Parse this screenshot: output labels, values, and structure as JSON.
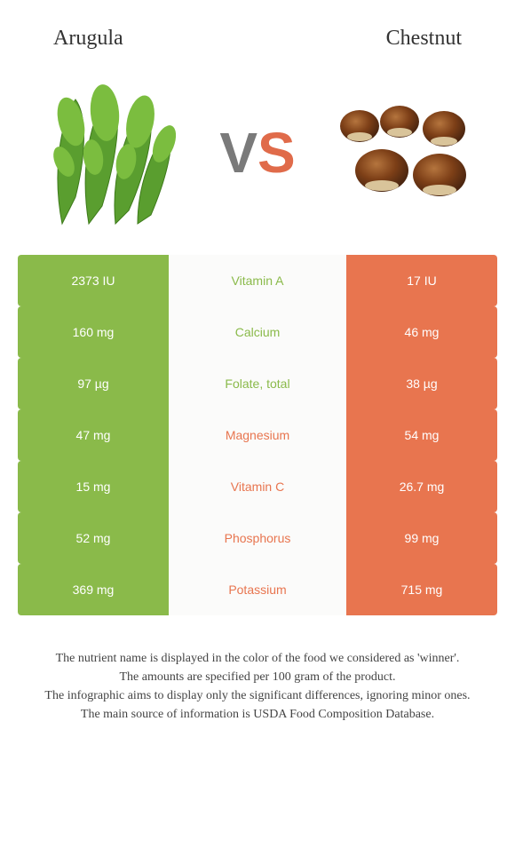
{
  "colors": {
    "left_food": "#8aba4a",
    "right_food": "#e8754f",
    "row_bg": "#fbfbfa",
    "vs_v": "#7a7a7a",
    "vs_s": "#e06b4a",
    "center_text_green": "#8aba4a",
    "center_text_orange": "#e8754f"
  },
  "header": {
    "left_name": "Arugula",
    "right_name": "Chestnut"
  },
  "vs": {
    "v": "V",
    "s": "S"
  },
  "rows": [
    {
      "left": "2373 IU",
      "label": "Vitamin A",
      "right": "17 IU",
      "winner": "left"
    },
    {
      "left": "160 mg",
      "label": "Calcium",
      "right": "46 mg",
      "winner": "left"
    },
    {
      "left": "97 µg",
      "label": "Folate, total",
      "right": "38 µg",
      "winner": "left"
    },
    {
      "left": "47 mg",
      "label": "Magnesium",
      "right": "54 mg",
      "winner": "right"
    },
    {
      "left": "15 mg",
      "label": "Vitamin C",
      "right": "26.7 mg",
      "winner": "right"
    },
    {
      "left": "52 mg",
      "label": "Phosphorus",
      "right": "99 mg",
      "winner": "right"
    },
    {
      "left": "369 mg",
      "label": "Potassium",
      "right": "715 mg",
      "winner": "right"
    }
  ],
  "footnotes": [
    "The nutrient name is displayed in the color of the food we considered as 'winner'.",
    "The amounts are specified per 100 gram of the product.",
    "The infographic aims to display only the significant differences, ignoring minor ones.",
    "The main source of information is USDA Food Composition Database."
  ]
}
